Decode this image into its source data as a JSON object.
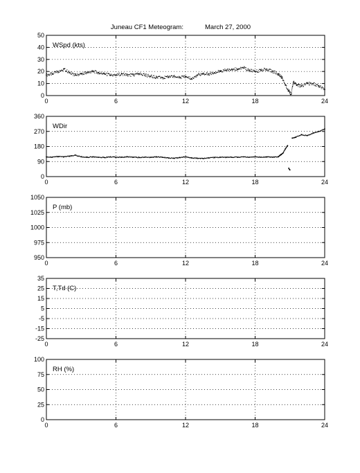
{
  "figure": {
    "title": "Juneau CF1 Meteogram:",
    "date": "March 27, 2000"
  },
  "chart_data": [
    {
      "type": "scatter",
      "panel_label": "WSpd (kts)",
      "xlim": [
        0,
        24
      ],
      "x_ticks": [
        0,
        6,
        12,
        18,
        24
      ],
      "ylim": [
        0,
        50
      ],
      "y_ticks": [
        0,
        10,
        20,
        30,
        40,
        50
      ],
      "grid": true,
      "series": [
        {
          "color": "#000000",
          "x": [
            0,
            0.5,
            1,
            1.5,
            2,
            2.5,
            3,
            3.5,
            4,
            4.5,
            5,
            5.5,
            6,
            6.5,
            7,
            7.5,
            8,
            8.5,
            9,
            9.5,
            10,
            10.5,
            11,
            11.5,
            12,
            12.5,
            13,
            13.5,
            14,
            14.5,
            15,
            15.5,
            16,
            16.5,
            17,
            17.5,
            18,
            18.5,
            19,
            19.5,
            20,
            20.3,
            20.6,
            20.9,
            21.1,
            21.3,
            21.6,
            22,
            22.5,
            23,
            23.5,
            24
          ],
          "values": [
            17,
            18,
            20,
            22,
            19,
            17,
            18,
            19,
            20,
            19,
            18,
            17,
            17,
            18,
            17,
            17,
            18,
            17,
            16,
            15,
            15,
            15,
            16,
            15,
            16,
            14,
            17,
            18,
            18,
            19,
            20,
            21,
            22,
            22,
            23,
            21,
            20,
            21,
            22,
            20,
            18,
            15,
            9,
            4,
            1,
            11,
            9,
            8,
            10,
            10,
            8,
            5
          ]
        }
      ]
    },
    {
      "type": "scatter",
      "panel_label": "WDir",
      "xlim": [
        0,
        24
      ],
      "x_ticks": [
        0,
        6,
        12,
        18,
        24
      ],
      "ylim": [
        0,
        360
      ],
      "y_ticks": [
        0,
        90,
        180,
        270,
        360
      ],
      "grid": true,
      "series": [
        {
          "color": "#000000",
          "x": [
            0,
            0.5,
            1,
            1.5,
            2,
            2.5,
            3,
            3.5,
            4,
            4.5,
            5,
            5.5,
            6,
            6.5,
            7,
            7.5,
            8,
            8.5,
            9,
            9.5,
            10,
            10.5,
            11,
            11.5,
            12,
            12.5,
            13,
            13.5,
            14,
            14.5,
            15,
            15.5,
            16,
            16.5,
            17,
            17.5,
            18,
            18.5,
            19,
            19.5,
            20,
            20.2,
            20.4,
            20.6,
            20.8,
            20.9,
            21.0,
            21.2,
            21.5,
            22,
            22.5,
            23,
            23.5,
            24
          ],
          "values": [
            118,
            116,
            120,
            118,
            122,
            128,
            118,
            115,
            118,
            116,
            114,
            118,
            116,
            115,
            118,
            116,
            114,
            116,
            115,
            118,
            116,
            112,
            110,
            114,
            118,
            112,
            110,
            108,
            112,
            114,
            116,
            115,
            116,
            116,
            118,
            116,
            118,
            116,
            118,
            116,
            118,
            130,
            140,
            165,
            185,
            50,
            40,
            230,
            235,
            250,
            245,
            260,
            270,
            285
          ]
        }
      ]
    },
    {
      "type": "scatter",
      "panel_label": "P (mb)",
      "xlim": [
        0,
        24
      ],
      "x_ticks": [
        0,
        6,
        12,
        18,
        24
      ],
      "ylim": [
        950,
        1050
      ],
      "y_ticks": [
        950,
        975,
        1000,
        1025,
        1050
      ],
      "grid": true,
      "series": []
    },
    {
      "type": "scatter",
      "panel_label": "T,Td (C)",
      "xlim": [
        0,
        24
      ],
      "x_ticks": [
        0,
        6,
        12,
        18,
        24
      ],
      "ylim": [
        -25,
        35
      ],
      "y_ticks": [
        -25,
        -15,
        -5,
        5,
        15,
        25,
        35
      ],
      "grid": true,
      "series": []
    },
    {
      "type": "scatter",
      "panel_label": "RH (%)",
      "xlim": [
        0,
        24
      ],
      "x_ticks": [
        0,
        6,
        12,
        18,
        24
      ],
      "ylim": [
        0,
        100
      ],
      "y_ticks": [
        0,
        25,
        50,
        75,
        100
      ],
      "grid": true,
      "series": []
    }
  ]
}
